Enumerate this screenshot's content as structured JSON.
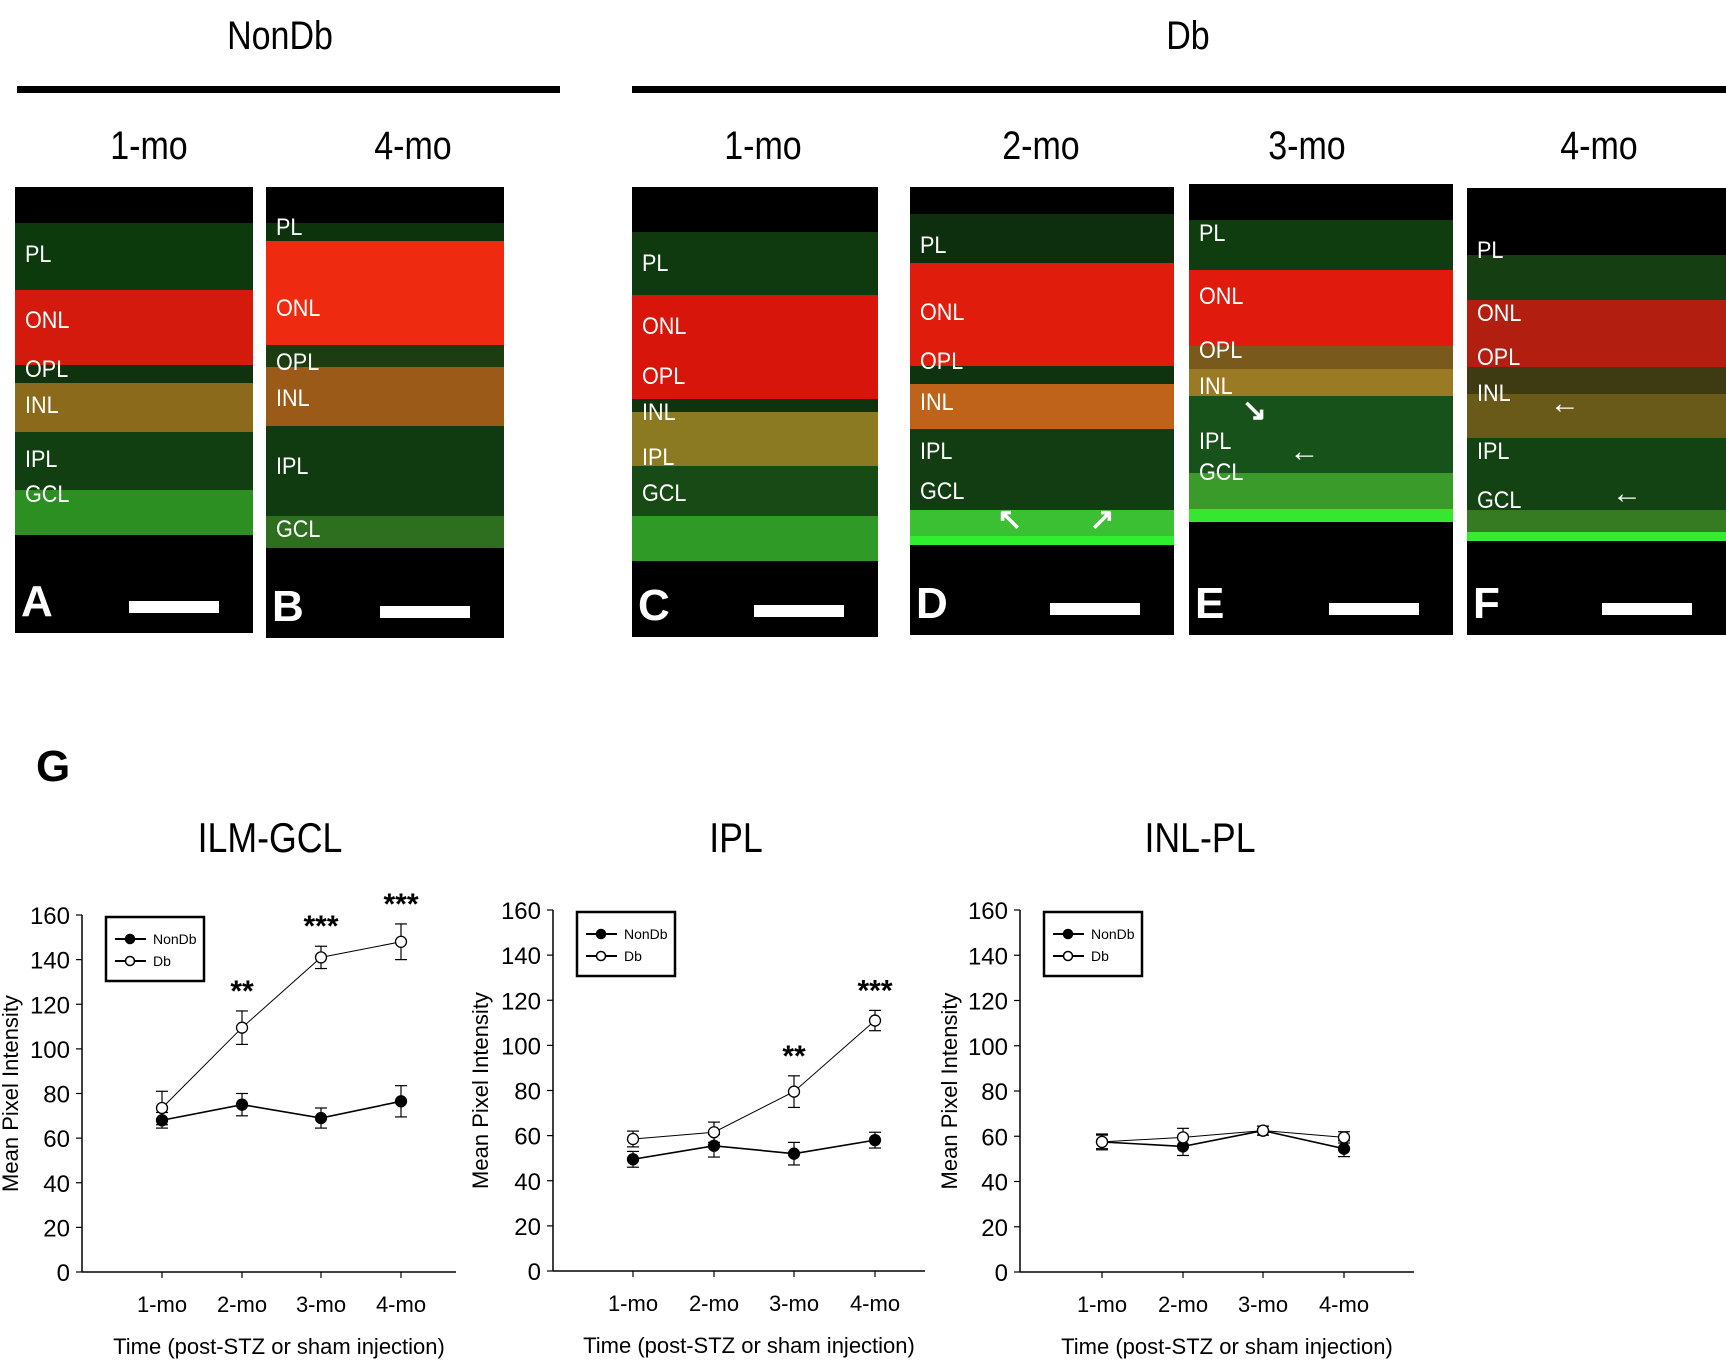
{
  "figure": {
    "groups": [
      {
        "id": "nondb",
        "label": "NonDb"
      },
      {
        "id": "db",
        "label": "Db"
      }
    ],
    "panels": [
      {
        "letter": "A",
        "group": "NonDb",
        "time": "1-mo",
        "layers": [
          "PL",
          "ONL",
          "OPL",
          "INL",
          "IPL",
          "GCL"
        ],
        "arrows": 0
      },
      {
        "letter": "B",
        "group": "NonDb",
        "time": "4-mo",
        "layers": [
          "PL",
          "ONL",
          "OPL",
          "INL",
          "IPL",
          "GCL"
        ],
        "arrows": 0
      },
      {
        "letter": "C",
        "group": "Db",
        "time": "1-mo",
        "layers": [
          "PL",
          "ONL",
          "OPL",
          "INL",
          "IPL",
          "GCL"
        ],
        "arrows": 0
      },
      {
        "letter": "D",
        "group": "Db",
        "time": "2-mo",
        "layers": [
          "PL",
          "ONL",
          "OPL",
          "INL",
          "IPL",
          "GCL"
        ],
        "arrows": 2
      },
      {
        "letter": "E",
        "group": "Db",
        "time": "3-mo",
        "layers": [
          "PL",
          "ONL",
          "OPL",
          "INL",
          "IPL",
          "GCL"
        ],
        "arrows": 2
      },
      {
        "letter": "F",
        "group": "Db",
        "time": "4-mo",
        "layers": [
          "PL",
          "ONL",
          "OPL",
          "INL",
          "IPL",
          "GCL"
        ],
        "arrows": 2
      }
    ],
    "colors": {
      "red_nuclei": "#e8190a",
      "green_signal": "#1fd41f",
      "background": "#000000"
    },
    "section_label": "G"
  },
  "chart_data": [
    {
      "type": "line",
      "title": "ILM-GCL",
      "xlabel": "Time (post-STZ or sham injection)",
      "ylabel": "Mean Pixel Intensity",
      "categories": [
        "1-mo",
        "2-mo",
        "3-mo",
        "4-mo"
      ],
      "ylim": [
        0,
        160
      ],
      "yticks": [
        0,
        20,
        40,
        60,
        80,
        100,
        120,
        140,
        160
      ],
      "legend": {
        "placement": "top-left",
        "entries": [
          "NonDb",
          "Db"
        ]
      },
      "series": [
        {
          "name": "NonDb",
          "marker": "filled-circle",
          "values": [
            68,
            75,
            69,
            76.5
          ],
          "errors": [
            3.5,
            5,
            4.5,
            7
          ]
        },
        {
          "name": "Db",
          "marker": "open-circle",
          "values": [
            73.5,
            109.5,
            141,
            148
          ],
          "errors": [
            7.5,
            7.5,
            5,
            8
          ]
        }
      ],
      "annotations": [
        "",
        "**",
        "***",
        "***"
      ]
    },
    {
      "type": "line",
      "title": "IPL",
      "xlabel": "Time (post-STZ or sham injection)",
      "ylabel": "Mean Pixel Intensity",
      "categories": [
        "1-mo",
        "2-mo",
        "3-mo",
        "4-mo"
      ],
      "ylim": [
        0,
        160
      ],
      "yticks": [
        0,
        20,
        40,
        60,
        80,
        100,
        120,
        140,
        160
      ],
      "legend": {
        "placement": "top-left",
        "entries": [
          "NonDb",
          "Db"
        ]
      },
      "series": [
        {
          "name": "NonDb",
          "marker": "filled-circle",
          "values": [
            49.5,
            55.5,
            52,
            58
          ],
          "errors": [
            3.5,
            5,
            5,
            3.5
          ]
        },
        {
          "name": "Db",
          "marker": "open-circle",
          "values": [
            58.5,
            61.5,
            79.5,
            111
          ],
          "errors": [
            3.5,
            4.5,
            7,
            4.5
          ]
        }
      ],
      "annotations": [
        "",
        "",
        "**",
        "***"
      ]
    },
    {
      "type": "line",
      "title": "INL-PL",
      "xlabel": "Time (post-STZ or sham injection)",
      "ylabel": "Mean Pixel Intensity",
      "categories": [
        "1-mo",
        "2-mo",
        "3-mo",
        "4-mo"
      ],
      "ylim": [
        0,
        160
      ],
      "yticks": [
        0,
        20,
        40,
        60,
        80,
        100,
        120,
        140,
        160
      ],
      "legend": {
        "placement": "top-left",
        "entries": [
          "NonDb",
          "Db"
        ]
      },
      "series": [
        {
          "name": "NonDb",
          "marker": "filled-circle",
          "values": [
            57.5,
            55.5,
            62.5,
            54.5
          ],
          "errors": [
            3,
            4,
            2,
            3.5
          ]
        },
        {
          "name": "Db",
          "marker": "open-circle",
          "values": [
            57.5,
            59.5,
            62.5,
            59.5
          ],
          "errors": [
            3.5,
            4,
            2,
            2.5
          ]
        }
      ],
      "annotations": [
        "",
        "",
        "",
        ""
      ]
    }
  ]
}
